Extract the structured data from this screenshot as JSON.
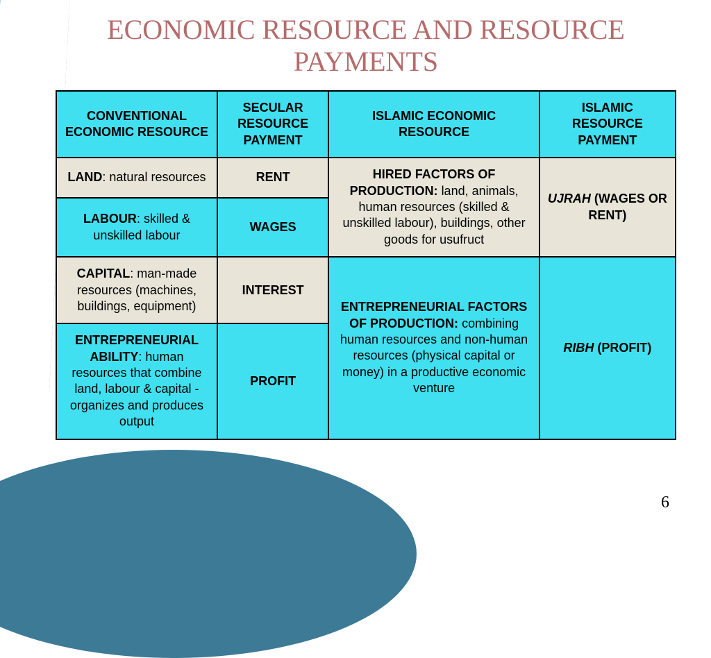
{
  "title": "ECONOMIC RESOURCE AND RESOURCE PAYMENTS",
  "page_number": "6",
  "colors": {
    "title_color": "#b56b6b",
    "header_bg": "#40e0f0",
    "alt_bg": "#e8e4d8",
    "border": "#000000",
    "swoosh": "#3c7a96"
  },
  "table": {
    "headers": [
      "CONVENTIONAL ECONOMIC RESOURCE",
      "SECULAR RESOURCE PAYMENT",
      "ISLAMIC ECONOMIC RESOURCE",
      "ISLAMIC RESOURCE PAYMENT"
    ],
    "row1": {
      "resource_bold": "LAND",
      "resource_rest": ": natural resources",
      "payment": "RENT"
    },
    "row2": {
      "resource_bold": "LABOUR",
      "resource_rest": ": skilled & unskilled labour",
      "payment": "WAGES"
    },
    "merged_islamic_1": {
      "bold": "HIRED FACTORS OF PRODUCTION: ",
      "rest": "land, animals, human resources (skilled & unskilled labour), buildings, other goods for usufruct"
    },
    "merged_payment_1": {
      "italic": "UJRAH",
      "rest": " (WAGES OR RENT)"
    },
    "row3": {
      "resource_bold": "CAPITAL",
      "resource_rest": ": man-made resources (machines, buildings, equipment)",
      "payment": "INTEREST"
    },
    "row4": {
      "resource_bold": "ENTREPRENEURIAL ABILITY",
      "resource_rest": ": human resources that combine land, labour & capital - organizes and produces output",
      "payment": "PROFIT"
    },
    "merged_islamic_2": {
      "bold": "ENTREPRENEURIAL FACTORS OF PRODUCTION: ",
      "rest": "combining human resources and non-human resources (physical capital or money) in a productive economic venture"
    },
    "merged_payment_2": {
      "italic": "RIBH",
      "rest": " (PROFIT)"
    }
  }
}
